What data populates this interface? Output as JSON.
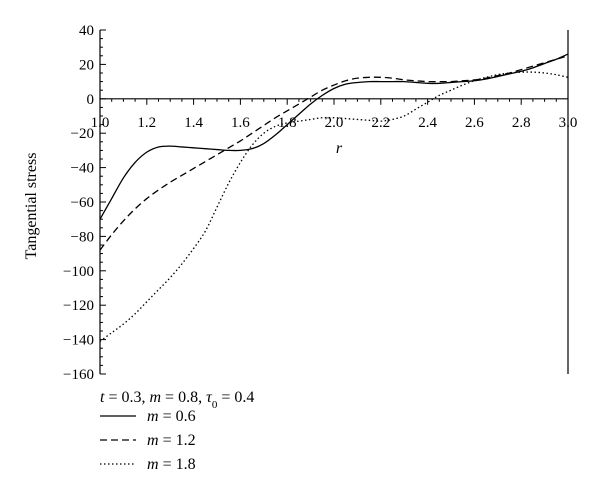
{
  "chart_data": {
    "type": "line",
    "xlabel": "r",
    "ylabel": "Tangential stress",
    "xlim": [
      1.0,
      3.0
    ],
    "ylim": [
      -160,
      40
    ],
    "x_ticks": [
      "1.0",
      "1.2",
      "1.4",
      "1.6",
      "1.8",
      "2.0",
      "2.2",
      "2.4",
      "2.6",
      "2.8",
      "3.0"
    ],
    "y_ticks": [
      "40",
      "20",
      "0",
      "−20",
      "−40",
      "−60",
      "−80",
      "−100",
      "−120",
      "−140",
      "−160"
    ],
    "grid": false,
    "legend": {
      "placement": "bottom-left",
      "params_parts": [
        "t",
        " = 0.3, ",
        "m",
        " = 0.8, ",
        "τ",
        "0",
        " = 0.4"
      ]
    },
    "series": [
      {
        "name": "m = 0.6",
        "name_var": "m",
        "name_val": " = 0.6",
        "style": "solid",
        "x": [
          1.0,
          1.05,
          1.1,
          1.15,
          1.2,
          1.25,
          1.3,
          1.35,
          1.4,
          1.45,
          1.5,
          1.55,
          1.6,
          1.65,
          1.7,
          1.75,
          1.8,
          1.85,
          1.9,
          1.95,
          2.0,
          2.05,
          2.1,
          2.15,
          2.2,
          2.25,
          2.3,
          2.35,
          2.4,
          2.45,
          2.5,
          2.55,
          2.6,
          2.65,
          2.7,
          2.75,
          2.8,
          2.85,
          2.9,
          2.95,
          3.0
        ],
        "y": [
          -70,
          -58,
          -46,
          -37,
          -31,
          -28,
          -27.5,
          -28,
          -28.5,
          -29,
          -29.5,
          -30,
          -30,
          -29,
          -26,
          -21,
          -15,
          -9,
          -3,
          2,
          6,
          8.5,
          9.5,
          10,
          10,
          10,
          10,
          9.5,
          9,
          9,
          9.5,
          10,
          10.5,
          11.5,
          13,
          14.5,
          16,
          18,
          20.5,
          23,
          26
        ]
      },
      {
        "name": "m = 1.2",
        "name_var": "m",
        "name_val": " = 1.2",
        "style": "dashed",
        "x": [
          1.0,
          1.05,
          1.1,
          1.15,
          1.2,
          1.25,
          1.3,
          1.35,
          1.4,
          1.45,
          1.5,
          1.55,
          1.6,
          1.65,
          1.7,
          1.75,
          1.8,
          1.85,
          1.9,
          1.95,
          2.0,
          2.05,
          2.1,
          2.15,
          2.2,
          2.25,
          2.3,
          2.35,
          2.4,
          2.45,
          2.5,
          2.55,
          2.6,
          2.65,
          2.7,
          2.75,
          2.8,
          2.85,
          2.9,
          2.95,
          3.0
        ],
        "y": [
          -88,
          -79,
          -71,
          -64,
          -58,
          -53,
          -48.5,
          -44.5,
          -40.5,
          -36.5,
          -32.5,
          -28.5,
          -24.5,
          -20,
          -15.5,
          -11,
          -7,
          -3,
          1,
          5,
          8,
          10.5,
          12,
          12.5,
          12.5,
          12,
          11,
          10.5,
          10,
          10,
          10,
          10.5,
          11,
          12,
          13.5,
          15,
          17,
          19,
          21,
          23,
          25
        ]
      },
      {
        "name": "m = 1.8",
        "name_var": "m",
        "name_val": " = 1.8",
        "style": "dotted",
        "x": [
          1.0,
          1.05,
          1.1,
          1.15,
          1.2,
          1.25,
          1.3,
          1.35,
          1.4,
          1.45,
          1.5,
          1.55,
          1.6,
          1.65,
          1.7,
          1.75,
          1.8,
          1.85,
          1.9,
          1.95,
          2.0,
          2.05,
          2.1,
          2.15,
          2.2,
          2.25,
          2.3,
          2.35,
          2.4,
          2.45,
          2.5,
          2.55,
          2.6,
          2.65,
          2.7,
          2.75,
          2.8,
          2.85,
          2.9,
          2.95,
          3.0
        ],
        "y": [
          -141,
          -136,
          -131,
          -125,
          -118,
          -111,
          -104,
          -96,
          -87,
          -77,
          -63,
          -49,
          -37,
          -27,
          -20,
          -16,
          -14,
          -13,
          -12,
          -11,
          -11,
          -11.5,
          -12,
          -12.5,
          -13,
          -12,
          -10,
          -6,
          -2,
          2,
          5,
          8,
          10.5,
          12.5,
          14,
          15,
          15.5,
          15.5,
          15,
          14,
          12.5
        ]
      }
    ]
  }
}
